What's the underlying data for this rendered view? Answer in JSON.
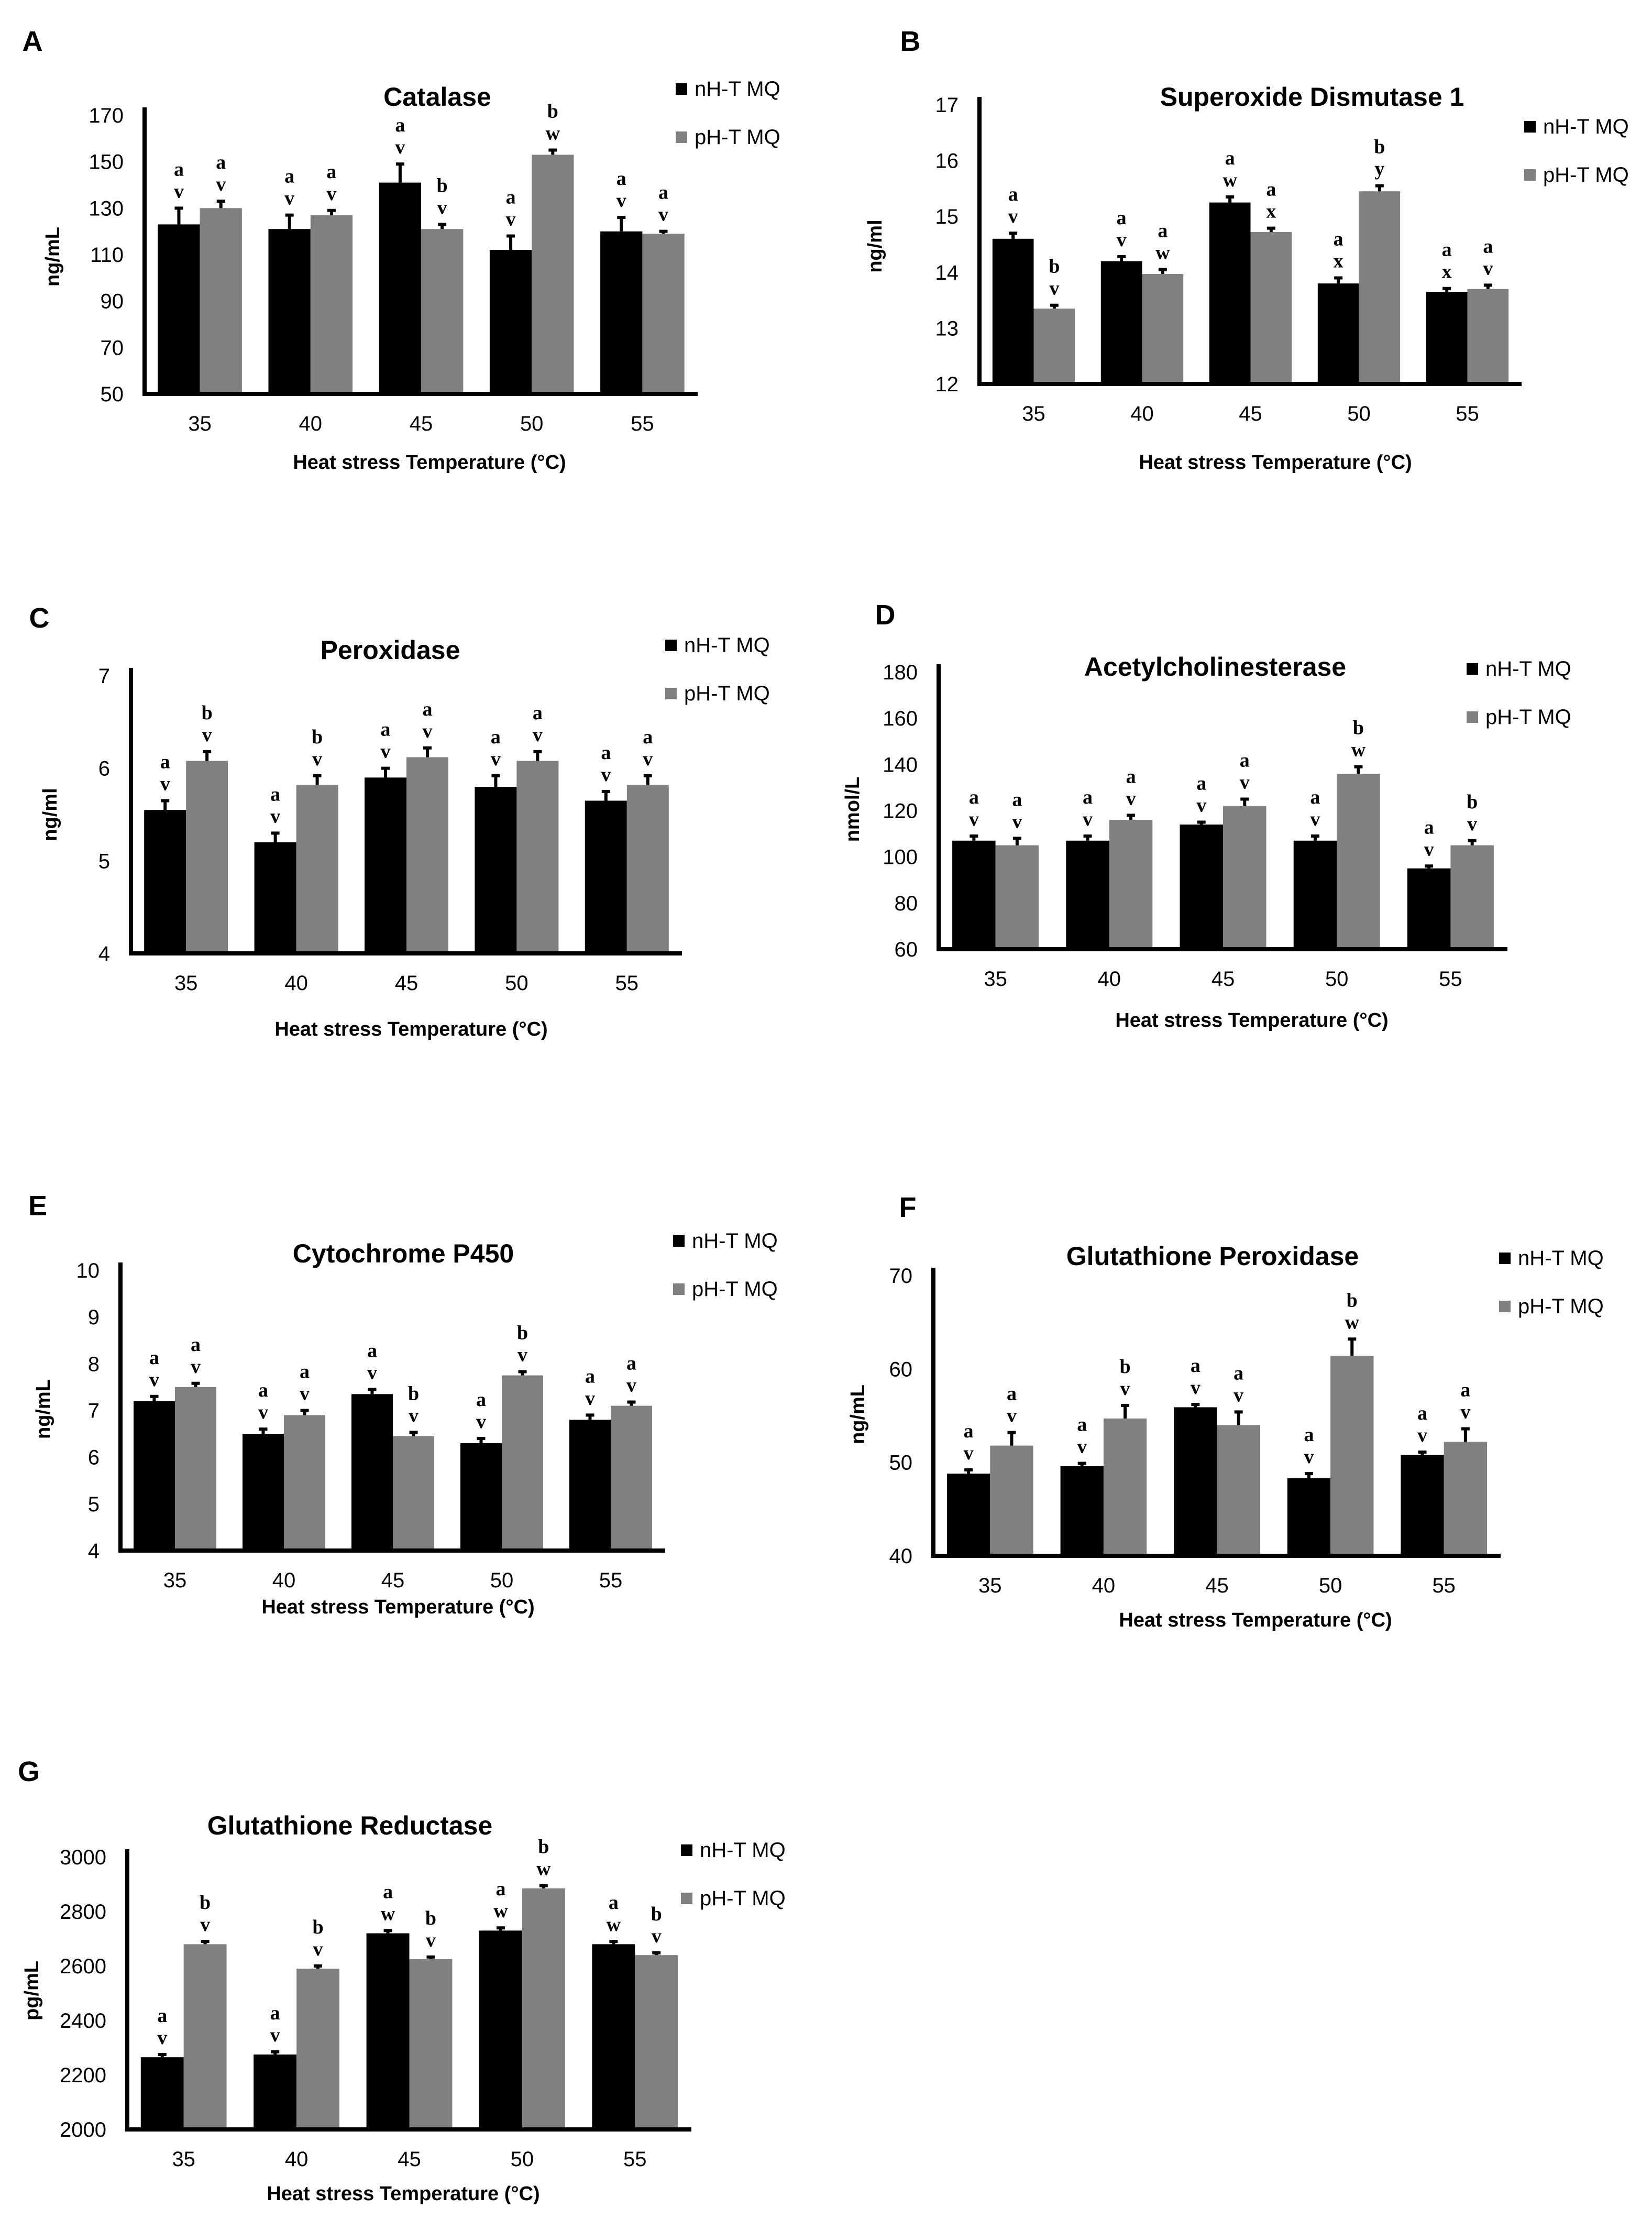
{
  "figure": {
    "colors": {
      "nHT": "#000000",
      "pHT": "#808080",
      "axis": "#000000"
    },
    "legend": [
      "nH-T MQ",
      "pH-T MQ"
    ]
  },
  "chart_data": [
    {
      "panel": "A",
      "type": "bar",
      "title": "Catalase",
      "xlabel": "Heat stress Temperature (°C)",
      "ylabel": "ng/mL",
      "categories": [
        "35",
        "40",
        "45",
        "50",
        "55"
      ],
      "ylim": [
        50,
        170
      ],
      "yticks": [
        50,
        70,
        90,
        110,
        130,
        150,
        170
      ],
      "series": [
        {
          "name": "nH-T MQ",
          "values": [
            123,
            121,
            141,
            112,
            120
          ],
          "errors": [
            7,
            6,
            8,
            6,
            6
          ],
          "sig": [
            [
              "a",
              "v"
            ],
            [
              "a",
              "v"
            ],
            [
              "a",
              "v"
            ],
            [
              "a",
              "v"
            ],
            [
              "a",
              "v"
            ]
          ]
        },
        {
          "name": "pH-T MQ",
          "values": [
            130,
            127,
            121,
            153,
            119
          ],
          "errors": [
            3,
            2,
            2,
            2,
            1
          ],
          "sig": [
            [
              "a",
              "v"
            ],
            [
              "a",
              "v"
            ],
            [
              "b",
              "v"
            ],
            [
              "b",
              "w"
            ],
            [
              "a",
              "v"
            ]
          ]
        }
      ]
    },
    {
      "panel": "B",
      "type": "bar",
      "title": "Superoxide Dismutase 1",
      "xlabel": "Heat stress Temperature (°C)",
      "ylabel": "ng/ml",
      "categories": [
        "35",
        "40",
        "45",
        "50",
        "55"
      ],
      "ylim": [
        12,
        17
      ],
      "yticks": [
        12,
        13,
        14,
        15,
        16,
        17
      ],
      "series": [
        {
          "name": "nH-T MQ",
          "values": [
            14.6,
            14.2,
            15.25,
            13.8,
            13.65
          ],
          "errors": [
            0.1,
            0.08,
            0.1,
            0.1,
            0.06
          ],
          "sig": [
            [
              "a",
              "v"
            ],
            [
              "a",
              "v"
            ],
            [
              "a",
              "w"
            ],
            [
              "a",
              "x"
            ],
            [
              "a",
              "x"
            ]
          ]
        },
        {
          "name": "pH-T MQ",
          "values": [
            13.35,
            13.97,
            14.72,
            15.45,
            13.7
          ],
          "errors": [
            0.06,
            0.08,
            0.07,
            0.1,
            0.07
          ],
          "sig": [
            [
              "b",
              "v"
            ],
            [
              "a",
              "w"
            ],
            [
              "a",
              "x"
            ],
            [
              "b",
              "y"
            ],
            [
              "a",
              "v"
            ]
          ]
        }
      ]
    },
    {
      "panel": "C",
      "type": "bar",
      "title": "Peroxidase",
      "xlabel": "Heat stress Temperature (°C)",
      "ylabel": "ng/ml",
      "categories": [
        "35",
        "40",
        "45",
        "50",
        "55"
      ],
      "ylim": [
        4,
        7
      ],
      "yticks": [
        4,
        5,
        6,
        7
      ],
      "series": [
        {
          "name": "nH-T MQ",
          "values": [
            5.55,
            5.2,
            5.9,
            5.8,
            5.65
          ],
          "errors": [
            0.1,
            0.1,
            0.1,
            0.12,
            0.1
          ],
          "sig": [
            [
              "a",
              "v"
            ],
            [
              "a",
              "v"
            ],
            [
              "a",
              "v"
            ],
            [
              "a",
              "v"
            ],
            [
              "a",
              "v"
            ]
          ]
        },
        {
          "name": "pH-T MQ",
          "values": [
            6.08,
            5.82,
            6.12,
            6.08,
            5.82
          ],
          "errors": [
            0.1,
            0.1,
            0.1,
            0.1,
            0.1
          ],
          "sig": [
            [
              "b",
              "v"
            ],
            [
              "b",
              "v"
            ],
            [
              "a",
              "v"
            ],
            [
              "a",
              "v"
            ],
            [
              "a",
              "v"
            ]
          ]
        }
      ]
    },
    {
      "panel": "D",
      "type": "bar",
      "title": "Acetylcholinesterase",
      "xlabel": "Heat stress Temperature (°C)",
      "ylabel": "nmol/L",
      "categories": [
        "35",
        "40",
        "45",
        "50",
        "55"
      ],
      "ylim": [
        60,
        180
      ],
      "yticks": [
        60,
        80,
        100,
        120,
        140,
        160,
        180
      ],
      "series": [
        {
          "name": "nH-T MQ",
          "values": [
            107,
            107,
            114,
            107,
            95
          ],
          "errors": [
            2,
            2,
            1,
            2,
            1
          ],
          "sig": [
            [
              "a",
              "v"
            ],
            [
              "a",
              "v"
            ],
            [
              "a",
              "v"
            ],
            [
              "a",
              "v"
            ],
            [
              "a",
              "v"
            ]
          ]
        },
        {
          "name": "pH-T MQ",
          "values": [
            105,
            116,
            122,
            136,
            105
          ],
          "errors": [
            3,
            2,
            3,
            3,
            2
          ],
          "sig": [
            [
              "a",
              "v"
            ],
            [
              "a",
              "v"
            ],
            [
              "a",
              "v"
            ],
            [
              "b",
              "w"
            ],
            [
              "b",
              "v"
            ]
          ]
        }
      ]
    },
    {
      "panel": "E",
      "type": "bar",
      "title": "Cytochrome P450",
      "xlabel": "Heat stress Temperature (°C)",
      "ylabel": "ng/mL",
      "categories": [
        "35",
        "40",
        "45",
        "50",
        "55"
      ],
      "ylim": [
        4,
        10
      ],
      "yticks": [
        4,
        5,
        6,
        7,
        8,
        9,
        10
      ],
      "series": [
        {
          "name": "nH-T MQ",
          "values": [
            7.2,
            6.5,
            7.35,
            6.3,
            6.8
          ],
          "errors": [
            0.1,
            0.1,
            0.1,
            0.1,
            0.1
          ],
          "sig": [
            [
              "a",
              "v"
            ],
            [
              "a",
              "v"
            ],
            [
              "a",
              "v"
            ],
            [
              "a",
              "v"
            ],
            [
              "a",
              "v"
            ]
          ]
        },
        {
          "name": "pH-T MQ",
          "values": [
            7.5,
            6.9,
            6.45,
            7.75,
            7.1
          ],
          "errors": [
            0.08,
            0.1,
            0.08,
            0.08,
            0.08
          ],
          "sig": [
            [
              "a",
              "v"
            ],
            [
              "a",
              "v"
            ],
            [
              "b",
              "v"
            ],
            [
              "b",
              "v"
            ],
            [
              "a",
              "v"
            ]
          ]
        }
      ]
    },
    {
      "panel": "F",
      "type": "bar",
      "title": "Glutathione Peroxidase",
      "xlabel": "Heat stress Temperature (°C)",
      "ylabel": "ng/mL",
      "categories": [
        "35",
        "40",
        "45",
        "50",
        "55"
      ],
      "ylim": [
        40,
        70
      ],
      "yticks": [
        40,
        50,
        60,
        70
      ],
      "series": [
        {
          "name": "nH-T MQ",
          "values": [
            48.8,
            49.6,
            55.9,
            48.3,
            50.8
          ],
          "errors": [
            0.4,
            0.3,
            0.3,
            0.5,
            0.3
          ],
          "sig": [
            [
              "a",
              "v"
            ],
            [
              "a",
              "v"
            ],
            [
              "a",
              "v"
            ],
            [
              "a",
              "v"
            ],
            [
              "a",
              "v"
            ]
          ]
        },
        {
          "name": "pH-T MQ",
          "values": [
            51.8,
            54.7,
            54,
            61.4,
            52.2
          ],
          "errors": [
            1.4,
            1.4,
            1.4,
            1.8,
            1.4
          ],
          "sig": [
            [
              "a",
              "v"
            ],
            [
              "b",
              "v"
            ],
            [
              "a",
              "v"
            ],
            [
              "b",
              "w"
            ],
            [
              "a",
              "v"
            ]
          ]
        }
      ]
    },
    {
      "panel": "G",
      "type": "bar",
      "title": "Glutathione Reductase",
      "xlabel": "Heat stress Temperature (°C)",
      "ylabel": "pg/mL",
      "categories": [
        "35",
        "40",
        "45",
        "50",
        "55"
      ],
      "ylim": [
        2000,
        3000
      ],
      "yticks": [
        2000,
        2200,
        2400,
        2600,
        2800,
        3000
      ],
      "series": [
        {
          "name": "nH-T MQ",
          "values": [
            2265,
            2275,
            2720,
            2730,
            2680
          ],
          "errors": [
            10,
            10,
            10,
            10,
            10
          ],
          "sig": [
            [
              "a",
              "v"
            ],
            [
              "a",
              "v"
            ],
            [
              "a",
              "w"
            ],
            [
              "a",
              "w"
            ],
            [
              "a",
              "w"
            ]
          ]
        },
        {
          "name": "pH-T MQ",
          "values": [
            2680,
            2590,
            2625,
            2885,
            2640
          ],
          "errors": [
            10,
            10,
            8,
            10,
            8
          ],
          "sig": [
            [
              "b",
              "v"
            ],
            [
              "b",
              "v"
            ],
            [
              "b",
              "v"
            ],
            [
              "b",
              "w"
            ],
            [
              "b",
              "v"
            ]
          ]
        }
      ]
    }
  ]
}
